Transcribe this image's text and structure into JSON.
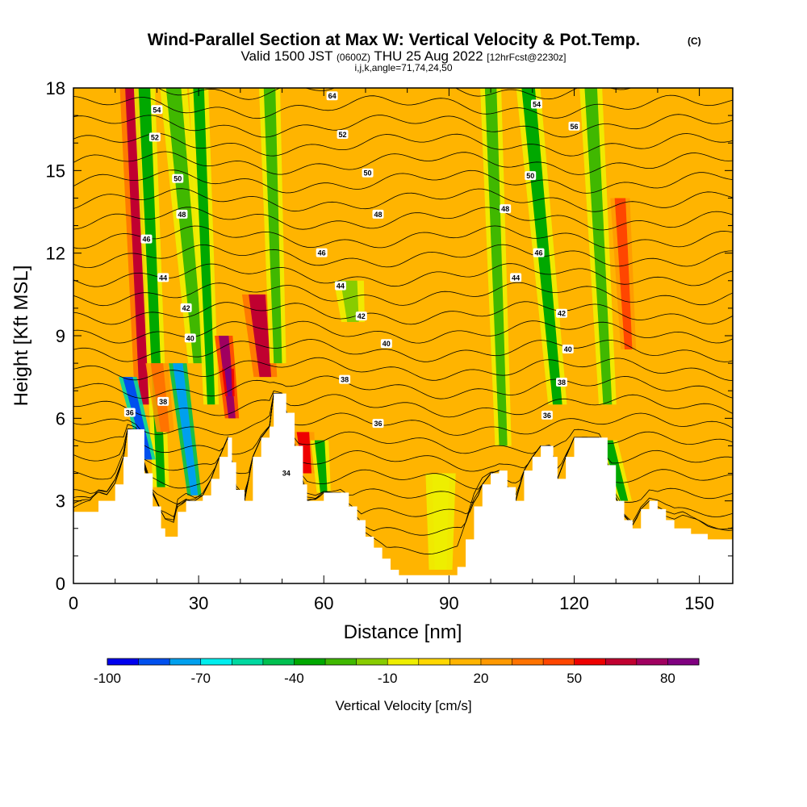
{
  "title": {
    "main": "Wind-Parallel Section at Max W: Vertical Velocity & Pot.Temp.",
    "copyright": "(C)",
    "valid_prefix": "Valid 1500 JST",
    "valid_zulu": "(0600Z)",
    "valid_date": "THU 25 Aug 2022",
    "forecast": "[12hrFcst@2230z]",
    "ijk": "i,j,k,angle=71,74,24,50"
  },
  "chart_data": {
    "type": "heatmap",
    "xlabel": "Distance [nm]",
    "ylabel": "Height [Kft MSL]",
    "xlim": [
      0,
      158
    ],
    "ylim": [
      0,
      18
    ],
    "x_ticks": [
      0,
      30,
      60,
      90,
      120,
      150
    ],
    "y_ticks": [
      0,
      3,
      6,
      9,
      12,
      15,
      18
    ],
    "x_tick_labels": [
      "0",
      "30",
      "60",
      "90",
      "120",
      "150"
    ],
    "y_tick_labels": [
      "0",
      "3",
      "6",
      "9",
      "12",
      "15",
      "18"
    ],
    "colorbar": {
      "label": "Vertical Velocity [cm/s]",
      "levels": [
        -100,
        -90,
        -80,
        -70,
        -60,
        -50,
        -40,
        -30,
        -20,
        -10,
        0,
        10,
        20,
        30,
        40,
        50,
        60,
        70,
        80,
        90
      ],
      "tick_labels": [
        "-100",
        "-70",
        "-40",
        "-10",
        "20",
        "50",
        "80"
      ],
      "tick_values": [
        -100,
        -70,
        -40,
        -10,
        20,
        50,
        80
      ],
      "colors": [
        "#0000ee",
        "#0050ee",
        "#00a0ee",
        "#00eeee",
        "#00d8a0",
        "#00c050",
        "#00a800",
        "#40b800",
        "#88cc00",
        "#eeee00",
        "#ffd700",
        "#ffb400",
        "#ff9900",
        "#ff7300",
        "#ff4600",
        "#ee0000",
        "#c00030",
        "#a00060",
        "#800080"
      ]
    },
    "background_velocity_cms": 10,
    "terrain": [
      {
        "x": 0,
        "h": 2.6
      },
      {
        "x": 4,
        "h": 2.6
      },
      {
        "x": 6,
        "h": 3.0
      },
      {
        "x": 8,
        "h": 3.0
      },
      {
        "x": 10,
        "h": 3.6
      },
      {
        "x": 12,
        "h": 4.6
      },
      {
        "x": 13,
        "h": 5.6
      },
      {
        "x": 15,
        "h": 5.6
      },
      {
        "x": 17,
        "h": 4.0
      },
      {
        "x": 19,
        "h": 2.8
      },
      {
        "x": 21,
        "h": 2.0
      },
      {
        "x": 22,
        "h": 1.7
      },
      {
        "x": 24,
        "h": 1.7
      },
      {
        "x": 25,
        "h": 2.6
      },
      {
        "x": 27,
        "h": 3.0
      },
      {
        "x": 29,
        "h": 3.0
      },
      {
        "x": 31,
        "h": 3.2
      },
      {
        "x": 33,
        "h": 3.8
      },
      {
        "x": 35,
        "h": 4.6
      },
      {
        "x": 37,
        "h": 5.3
      },
      {
        "x": 38,
        "h": 4.4
      },
      {
        "x": 39,
        "h": 3.4
      },
      {
        "x": 41,
        "h": 3.0
      },
      {
        "x": 43,
        "h": 4.6
      },
      {
        "x": 45,
        "h": 5.3
      },
      {
        "x": 47,
        "h": 5.7
      },
      {
        "x": 48,
        "h": 6.9
      },
      {
        "x": 50,
        "h": 6.9
      },
      {
        "x": 51,
        "h": 6.2
      },
      {
        "x": 53,
        "h": 5.0
      },
      {
        "x": 55,
        "h": 3.6
      },
      {
        "x": 56,
        "h": 3.0
      },
      {
        "x": 58,
        "h": 3.0
      },
      {
        "x": 60,
        "h": 3.3
      },
      {
        "x": 64,
        "h": 3.3
      },
      {
        "x": 66,
        "h": 2.8
      },
      {
        "x": 68,
        "h": 2.3
      },
      {
        "x": 70,
        "h": 1.7
      },
      {
        "x": 72,
        "h": 1.3
      },
      {
        "x": 74,
        "h": 0.9
      },
      {
        "x": 76,
        "h": 0.5
      },
      {
        "x": 78,
        "h": 0.3
      },
      {
        "x": 90,
        "h": 0.3
      },
      {
        "x": 92,
        "h": 0.6
      },
      {
        "x": 94,
        "h": 1.6
      },
      {
        "x": 96,
        "h": 2.8
      },
      {
        "x": 98,
        "h": 3.6
      },
      {
        "x": 100,
        "h": 4.0
      },
      {
        "x": 102,
        "h": 4.1
      },
      {
        "x": 104,
        "h": 3.5
      },
      {
        "x": 106,
        "h": 3.0
      },
      {
        "x": 108,
        "h": 4.1
      },
      {
        "x": 110,
        "h": 4.6
      },
      {
        "x": 112,
        "h": 5.0
      },
      {
        "x": 114,
        "h": 5.0
      },
      {
        "x": 115,
        "h": 4.6
      },
      {
        "x": 116,
        "h": 3.8
      },
      {
        "x": 118,
        "h": 4.6
      },
      {
        "x": 120,
        "h": 5.3
      },
      {
        "x": 126,
        "h": 5.3
      },
      {
        "x": 128,
        "h": 4.3
      },
      {
        "x": 130,
        "h": 3.0
      },
      {
        "x": 132,
        "h": 2.3
      },
      {
        "x": 134,
        "h": 2.0
      },
      {
        "x": 136,
        "h": 2.7
      },
      {
        "x": 138,
        "h": 3.0
      },
      {
        "x": 140,
        "h": 2.7
      },
      {
        "x": 142,
        "h": 2.3
      },
      {
        "x": 144,
        "h": 2.0
      },
      {
        "x": 146,
        "h": 2.0
      },
      {
        "x": 148,
        "h": 1.8
      },
      {
        "x": 152,
        "h": 1.6
      },
      {
        "x": 158,
        "h": 1.6
      }
    ],
    "velocity_features": [
      {
        "x0": 14,
        "y0": 18,
        "x1": 17,
        "y1": 6.5,
        "w": 1.6,
        "v": 60
      },
      {
        "x0": 17,
        "y0": 18,
        "x1": 21,
        "y1": 3.5,
        "w": 1.4,
        "v": -40
      },
      {
        "x0": 13,
        "y0": 7.5,
        "x1": 18,
        "y1": 4.5,
        "w": 1.2,
        "v": -90
      },
      {
        "x0": 25,
        "y0": 8.0,
        "x1": 29,
        "y1": 3.2,
        "w": 1.2,
        "v": -80
      },
      {
        "x0": 24,
        "y0": 18,
        "x1": 30,
        "y1": 8,
        "w": 1.8,
        "v": -30
      },
      {
        "x0": 30,
        "y0": 18,
        "x1": 33,
        "y1": 6.5,
        "w": 1.3,
        "v": -40
      },
      {
        "x0": 36,
        "y0": 9,
        "x1": 38,
        "y1": 6,
        "w": 1.2,
        "v": 70
      },
      {
        "x0": 37,
        "y0": 7.8,
        "x1": 37.5,
        "y1": 6.8,
        "w": 0.8,
        "v": 80
      },
      {
        "x0": 44,
        "y0": 10.5,
        "x1": 46,
        "y1": 7.5,
        "w": 2.0,
        "v": 60
      },
      {
        "x0": 47,
        "y0": 18,
        "x1": 49,
        "y1": 8,
        "w": 1.4,
        "v": -30
      },
      {
        "x0": 55,
        "y0": 5.5,
        "x1": 56,
        "y1": 4.0,
        "w": 1.5,
        "v": 55
      },
      {
        "x0": 59,
        "y0": 5.2,
        "x1": 60,
        "y1": 3.3,
        "w": 1.2,
        "v": -40
      },
      {
        "x0": 66,
        "y0": 11,
        "x1": 67,
        "y1": 9.5,
        "w": 2.0,
        "v": -20
      },
      {
        "x0": 100,
        "y0": 18,
        "x1": 103,
        "y1": 5,
        "w": 1.4,
        "v": -30
      },
      {
        "x0": 109,
        "y0": 18,
        "x1": 116,
        "y1": 6.5,
        "w": 1.6,
        "v": -40
      },
      {
        "x0": 124,
        "y0": 18,
        "x1": 128,
        "y1": 6.5,
        "w": 1.5,
        "v": -30
      },
      {
        "x0": 131,
        "y0": 14,
        "x1": 133,
        "y1": 8.5,
        "w": 1.3,
        "v": 40
      },
      {
        "x0": 128,
        "y0": 5.2,
        "x1": 132,
        "y1": 3.0,
        "w": 1.3,
        "v": -40
      },
      {
        "x0": 20,
        "y0": 8,
        "x1": 22,
        "y1": 5.5,
        "w": 1.5,
        "v": 30
      },
      {
        "x0": 88,
        "y0": 4,
        "x1": 88,
        "y1": 0.5,
        "w": 2.0,
        "v": -10
      }
    ],
    "theta_contour_levels": [
      34,
      36,
      38,
      40,
      42,
      44,
      46,
      48,
      50,
      52,
      54
    ],
    "theta_contour_labels": [
      {
        "text": "54",
        "x": 20,
        "y": 17.2
      },
      {
        "text": "52",
        "x": 19.5,
        "y": 16.2
      },
      {
        "text": "50",
        "x": 25,
        "y": 14.7
      },
      {
        "text": "48",
        "x": 26,
        "y": 13.4
      },
      {
        "text": "46",
        "x": 17.5,
        "y": 12.5
      },
      {
        "text": "44",
        "x": 21.5,
        "y": 11.1
      },
      {
        "text": "42",
        "x": 27,
        "y": 10.0
      },
      {
        "text": "40",
        "x": 28,
        "y": 8.9
      },
      {
        "text": "38",
        "x": 21.5,
        "y": 6.6
      },
      {
        "text": "36",
        "x": 13.5,
        "y": 6.2
      },
      {
        "text": "34",
        "x": 51,
        "y": 4.0
      },
      {
        "text": "64",
        "x": 62,
        "y": 17.7
      },
      {
        "text": "52",
        "x": 64.5,
        "y": 16.3
      },
      {
        "text": "50",
        "x": 70.5,
        "y": 14.9
      },
      {
        "text": "48",
        "x": 73,
        "y": 13.4
      },
      {
        "text": "46",
        "x": 59.5,
        "y": 12.0
      },
      {
        "text": "44",
        "x": 64,
        "y": 10.8
      },
      {
        "text": "42",
        "x": 69,
        "y": 9.7
      },
      {
        "text": "40",
        "x": 75,
        "y": 8.7
      },
      {
        "text": "38",
        "x": 65,
        "y": 7.4
      },
      {
        "text": "36",
        "x": 73,
        "y": 5.8
      },
      {
        "text": "54",
        "x": 111,
        "y": 17.4
      },
      {
        "text": "50",
        "x": 109.5,
        "y": 14.8
      },
      {
        "text": "56",
        "x": 120,
        "y": 16.6
      },
      {
        "text": "48",
        "x": 103.5,
        "y": 13.6
      },
      {
        "text": "46",
        "x": 111.5,
        "y": 12.0
      },
      {
        "text": "44",
        "x": 106,
        "y": 11.1
      },
      {
        "text": "42",
        "x": 117,
        "y": 9.8
      },
      {
        "text": "40",
        "x": 118.5,
        "y": 8.5
      },
      {
        "text": "38",
        "x": 117,
        "y": 7.3
      },
      {
        "text": "36",
        "x": 113.5,
        "y": 6.1
      }
    ]
  }
}
